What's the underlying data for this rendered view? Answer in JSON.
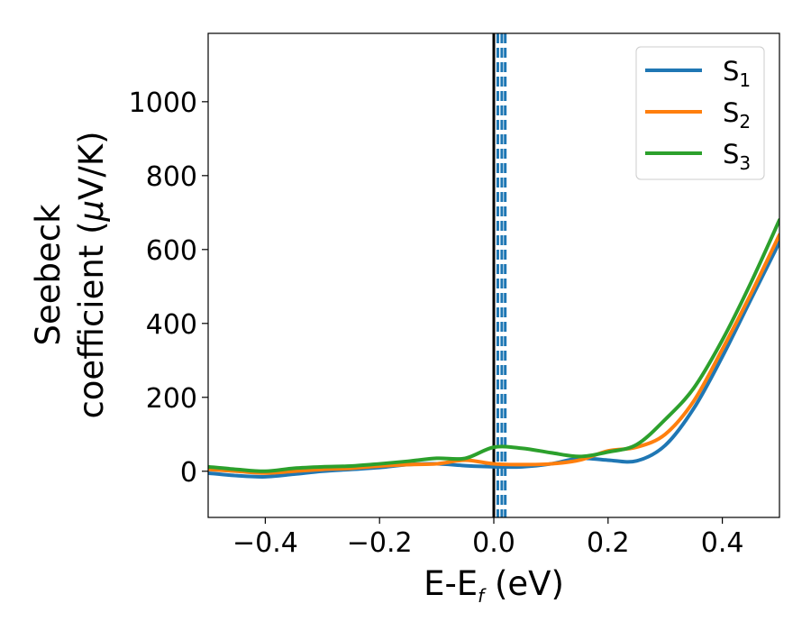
{
  "chart_data": {
    "type": "line",
    "title": "",
    "xlabel": {
      "main": "E-E",
      "sub": "f",
      "suffix": " (eV)"
    },
    "ylabel": {
      "line1": "Seebeck",
      "line2_prefix": "coefficient  (",
      "mu": "μ",
      "line2_suffix": "V/K)"
    },
    "xlim": [
      -0.5,
      0.5
    ],
    "ylim": [
      -125,
      1185
    ],
    "xticks": [
      -0.4,
      -0.2,
      0.0,
      0.2,
      0.4
    ],
    "xtick_labels": [
      "−0.4",
      "−0.2",
      "0.0",
      "0.2",
      "0.4"
    ],
    "yticks": [
      0,
      200,
      400,
      600,
      800,
      1000
    ],
    "ytick_labels": [
      "0",
      "200",
      "400",
      "600",
      "800",
      "1000"
    ],
    "grid": false,
    "legend_placement": "top-right",
    "vertical_lines": [
      {
        "x": 0.0,
        "style": "solid",
        "color": "#000000"
      },
      {
        "x": 0.007,
        "style": "dashed",
        "color": "#1f77b4"
      },
      {
        "x": 0.014,
        "style": "dashed",
        "color": "#1f77b4"
      },
      {
        "x": 0.02,
        "style": "dashed",
        "color": "#1f77b4"
      }
    ],
    "series": [
      {
        "name": "S",
        "sub": "1",
        "color": "#1f77b4",
        "x": [
          -0.5,
          -0.45,
          -0.4,
          -0.35,
          -0.3,
          -0.25,
          -0.2,
          -0.15,
          -0.1,
          -0.05,
          0.0,
          0.05,
          0.1,
          0.15,
          0.2,
          0.25,
          0.3,
          0.35,
          0.4,
          0.45,
          0.5
        ],
        "y": [
          -5,
          -12,
          -15,
          -8,
          0,
          5,
          10,
          18,
          20,
          15,
          12,
          12,
          20,
          35,
          30,
          28,
          70,
          170,
          310,
          465,
          620
        ]
      },
      {
        "name": "S",
        "sub": "2",
        "color": "#ff7f0e",
        "x": [
          -0.5,
          -0.45,
          -0.4,
          -0.35,
          -0.3,
          -0.25,
          -0.2,
          -0.15,
          -0.1,
          -0.05,
          0.0,
          0.05,
          0.1,
          0.15,
          0.2,
          0.25,
          0.3,
          0.35,
          0.4,
          0.45,
          0.5
        ],
        "y": [
          5,
          0,
          -5,
          0,
          5,
          8,
          14,
          18,
          20,
          30,
          20,
          18,
          20,
          30,
          55,
          65,
          100,
          190,
          330,
          480,
          640
        ]
      },
      {
        "name": "S",
        "sub": "3",
        "color": "#2ca02c",
        "x": [
          -0.5,
          -0.45,
          -0.4,
          -0.35,
          -0.3,
          -0.25,
          -0.2,
          -0.15,
          -0.1,
          -0.05,
          0.0,
          0.05,
          0.1,
          0.15,
          0.2,
          0.25,
          0.3,
          0.35,
          0.4,
          0.45,
          0.5
        ],
        "y": [
          12,
          5,
          0,
          8,
          12,
          14,
          20,
          27,
          35,
          35,
          65,
          62,
          50,
          40,
          52,
          72,
          140,
          225,
          355,
          510,
          680
        ]
      }
    ]
  }
}
